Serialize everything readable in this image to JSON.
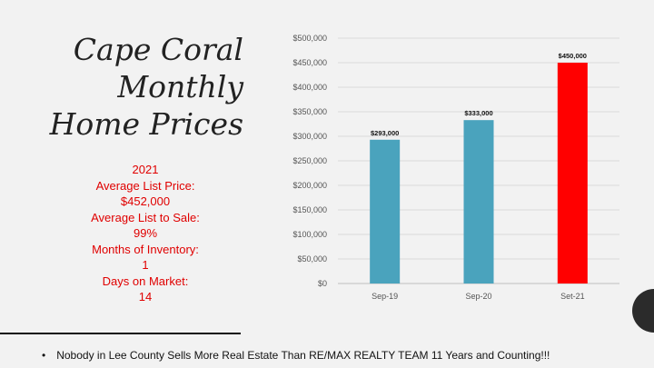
{
  "title_lines": [
    "Cape Coral",
    "Monthly",
    "Home Prices"
  ],
  "stats_lines": [
    "2021",
    "Average List Price:",
    "$452,000",
    "Average List to Sale:",
    "99%",
    "Months of Inventory:",
    "1",
    "Days on Market:",
    "14"
  ],
  "footer": {
    "bullet": "•",
    "text": "Nobody in Lee County Sells More Real Estate Than RE/MAX REALTY TEAM  11 Years and Counting!!!"
  },
  "colors": {
    "bar": "#4aa3bd",
    "highlight": "#ff0000",
    "stats_text": "#e00000"
  },
  "chart_data": {
    "type": "bar",
    "categories": [
      "Sep-19",
      "Sep-20",
      "Set-21"
    ],
    "values": [
      293000,
      333000,
      450000
    ],
    "data_labels": [
      "$293,000",
      "$333,000",
      "$450,000"
    ],
    "bar_colors": [
      "#4aa3bd",
      "#4aa3bd",
      "#ff0000"
    ],
    "ytick_labels": [
      "$0",
      "$50,000",
      "$100,000",
      "$150,000",
      "$200,000",
      "$250,000",
      "$300,000",
      "$350,000",
      "$400,000",
      "$450,000",
      "$500,000"
    ],
    "ylim": [
      0,
      500000
    ],
    "grid": true,
    "title": "",
    "xlabel": "",
    "ylabel": ""
  }
}
